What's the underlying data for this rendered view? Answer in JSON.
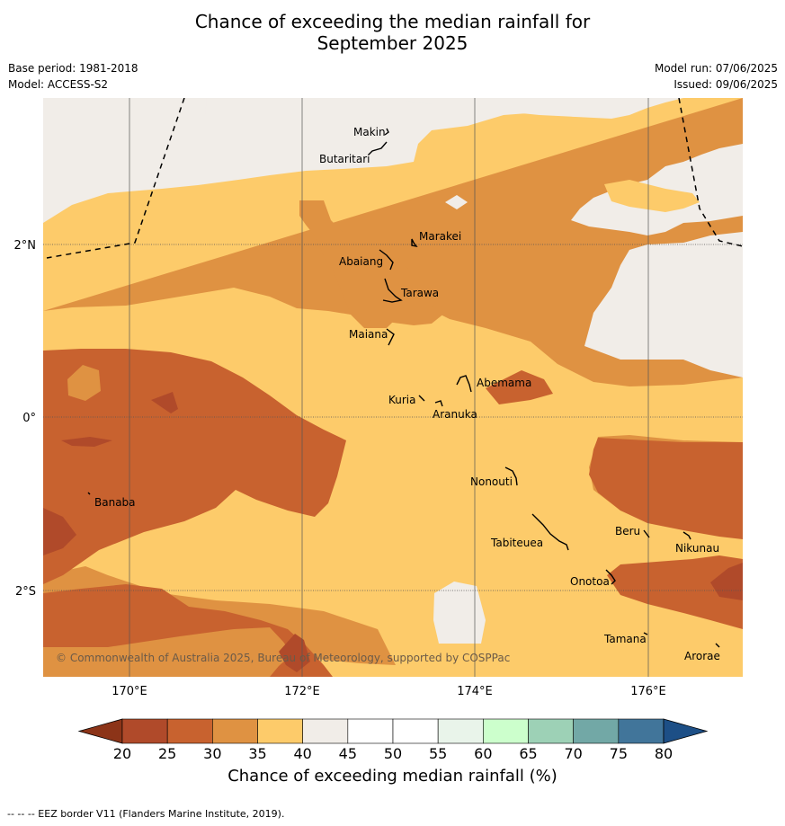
{
  "title_line1": "Chance of exceeding the median rainfall for",
  "title_line2": "September 2025",
  "meta_left": [
    "Base period: 1981-2018",
    "Model: ACCESS-S2"
  ],
  "meta_right": [
    "Model run: 07/06/2025",
    "Issued: 09/06/2025"
  ],
  "map": {
    "lon_range": [
      169,
      177.1
    ],
    "lat_range": [
      -3.0,
      3.5
    ],
    "lon_ticks": [
      {
        "v": 170,
        "label": "170°E"
      },
      {
        "v": 172,
        "label": "172°E"
      },
      {
        "v": 174,
        "label": "174°E"
      },
      {
        "v": 176,
        "label": "176°E"
      }
    ],
    "lat_ticks": [
      {
        "v": 2,
        "label": "2°N"
      },
      {
        "v": 0,
        "label": "0°"
      },
      {
        "v": -2,
        "label": "2°S"
      }
    ],
    "islands": [
      {
        "name": "Makin",
        "lon": 173.0,
        "lat": 3.35
      },
      {
        "name": "Butaritari",
        "lon": 172.8,
        "lat": 3.05
      },
      {
        "name": "Marakei",
        "lon": 173.3,
        "lat": 2.0
      },
      {
        "name": "Abaiang",
        "lon": 172.95,
        "lat": 1.8
      },
      {
        "name": "Tarawa",
        "lon": 173.0,
        "lat": 1.4
      },
      {
        "name": "Maiana",
        "lon": 173.0,
        "lat": 0.95
      },
      {
        "name": "Abemama",
        "lon": 173.9,
        "lat": 0.37
      },
      {
        "name": "Kuria",
        "lon": 173.4,
        "lat": 0.22
      },
      {
        "name": "Aranuka",
        "lon": 173.6,
        "lat": 0.18
      },
      {
        "name": "Nonouti",
        "lon": 174.4,
        "lat": -0.65
      },
      {
        "name": "Tabiteuea",
        "lon": 174.9,
        "lat": -1.35
      },
      {
        "name": "Beru",
        "lon": 176.0,
        "lat": -1.33
      },
      {
        "name": "Nikunau",
        "lon": 176.45,
        "lat": -1.35
      },
      {
        "name": "Onotoa",
        "lon": 175.6,
        "lat": -1.85
      },
      {
        "name": "Tamana",
        "lon": 175.98,
        "lat": -2.5
      },
      {
        "name": "Arorae",
        "lon": 176.82,
        "lat": -2.65
      },
      {
        "name": "Banaba",
        "lon": 169.55,
        "lat": -0.87
      }
    ],
    "copyright": "© Commonwealth of Australia 2025, Bureau of Meteorology, supported by COSPPac"
  },
  "colorbar": {
    "ticks": [
      "20",
      "25",
      "30",
      "35",
      "40",
      "45",
      "50",
      "55",
      "60",
      "65",
      "70",
      "75",
      "80"
    ],
    "colors": [
      "#b04a2a",
      "#c8622f",
      "#df9242",
      "#fdcb6a",
      "#f1ede8",
      "#ffffff",
      "#ffffff",
      "#e9f4ea",
      "#ccffcc",
      "#9dd1b6",
      "#72a8a6",
      "#41759a"
    ],
    "under_color": "#8c3418",
    "over_color": "#1d4f86",
    "label": "Chance of exceeding median rainfall (%)"
  },
  "footnote": "--  --  -- EEZ border V11 (Flanders Marine Institute, 2019)."
}
